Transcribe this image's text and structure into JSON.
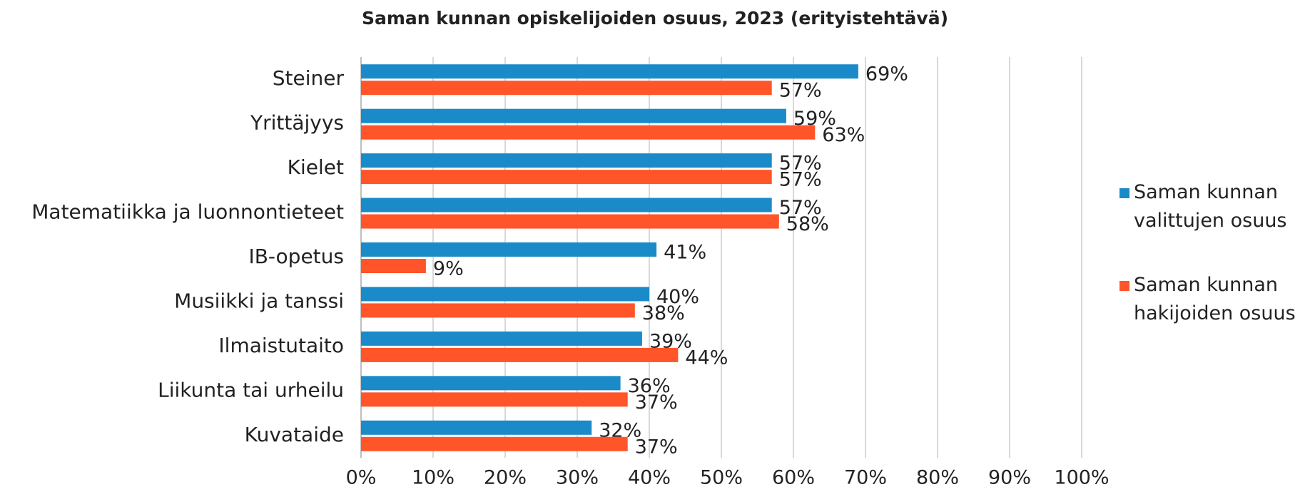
{
  "chart_data": {
    "type": "bar",
    "orientation": "horizontal",
    "title": "Saman kunnan opiskelijoiden osuus, 2023 (erityistehtävä)",
    "categories": [
      "Steiner",
      "Yrittäjyys",
      "Kielet",
      "Matematiikka ja luonnontieteet",
      "IB-opetus",
      "Musiikki ja tanssi",
      "Ilmaistutaito",
      "Liikunta tai urheilu",
      "Kuvataide"
    ],
    "series": [
      {
        "name": "Saman kunnan valittujen osuus",
        "color": "#1b8ac9",
        "values": [
          69,
          59,
          57,
          57,
          41,
          40,
          39,
          36,
          32
        ],
        "value_labels": [
          "69%",
          "59%",
          "57%",
          "57%",
          "41%",
          "40%",
          "39%",
          "36%",
          "32%"
        ]
      },
      {
        "name": "Saman kunnan hakijoiden osuus",
        "color": "#ff5529",
        "values": [
          57,
          63,
          57,
          58,
          9,
          38,
          44,
          37,
          37
        ],
        "value_labels": [
          "57%",
          "63%",
          "57%",
          "58%",
          "9%",
          "38%",
          "44%",
          "37%",
          "37%"
        ]
      }
    ],
    "xlim": [
      0,
      100
    ],
    "xticks": [
      {
        "value": 0,
        "label": "0%"
      },
      {
        "value": 10,
        "label": "10%"
      },
      {
        "value": 20,
        "label": "20%"
      },
      {
        "value": 30,
        "label": "30%"
      },
      {
        "value": 40,
        "label": "40%"
      },
      {
        "value": 50,
        "label": "50%"
      },
      {
        "value": 60,
        "label": "60%"
      },
      {
        "value": 70,
        "label": "70%"
      },
      {
        "value": 80,
        "label": "80%"
      },
      {
        "value": 90,
        "label": "90%"
      },
      {
        "value": 100,
        "label": "100%"
      }
    ],
    "grid": true,
    "legend": "right"
  }
}
